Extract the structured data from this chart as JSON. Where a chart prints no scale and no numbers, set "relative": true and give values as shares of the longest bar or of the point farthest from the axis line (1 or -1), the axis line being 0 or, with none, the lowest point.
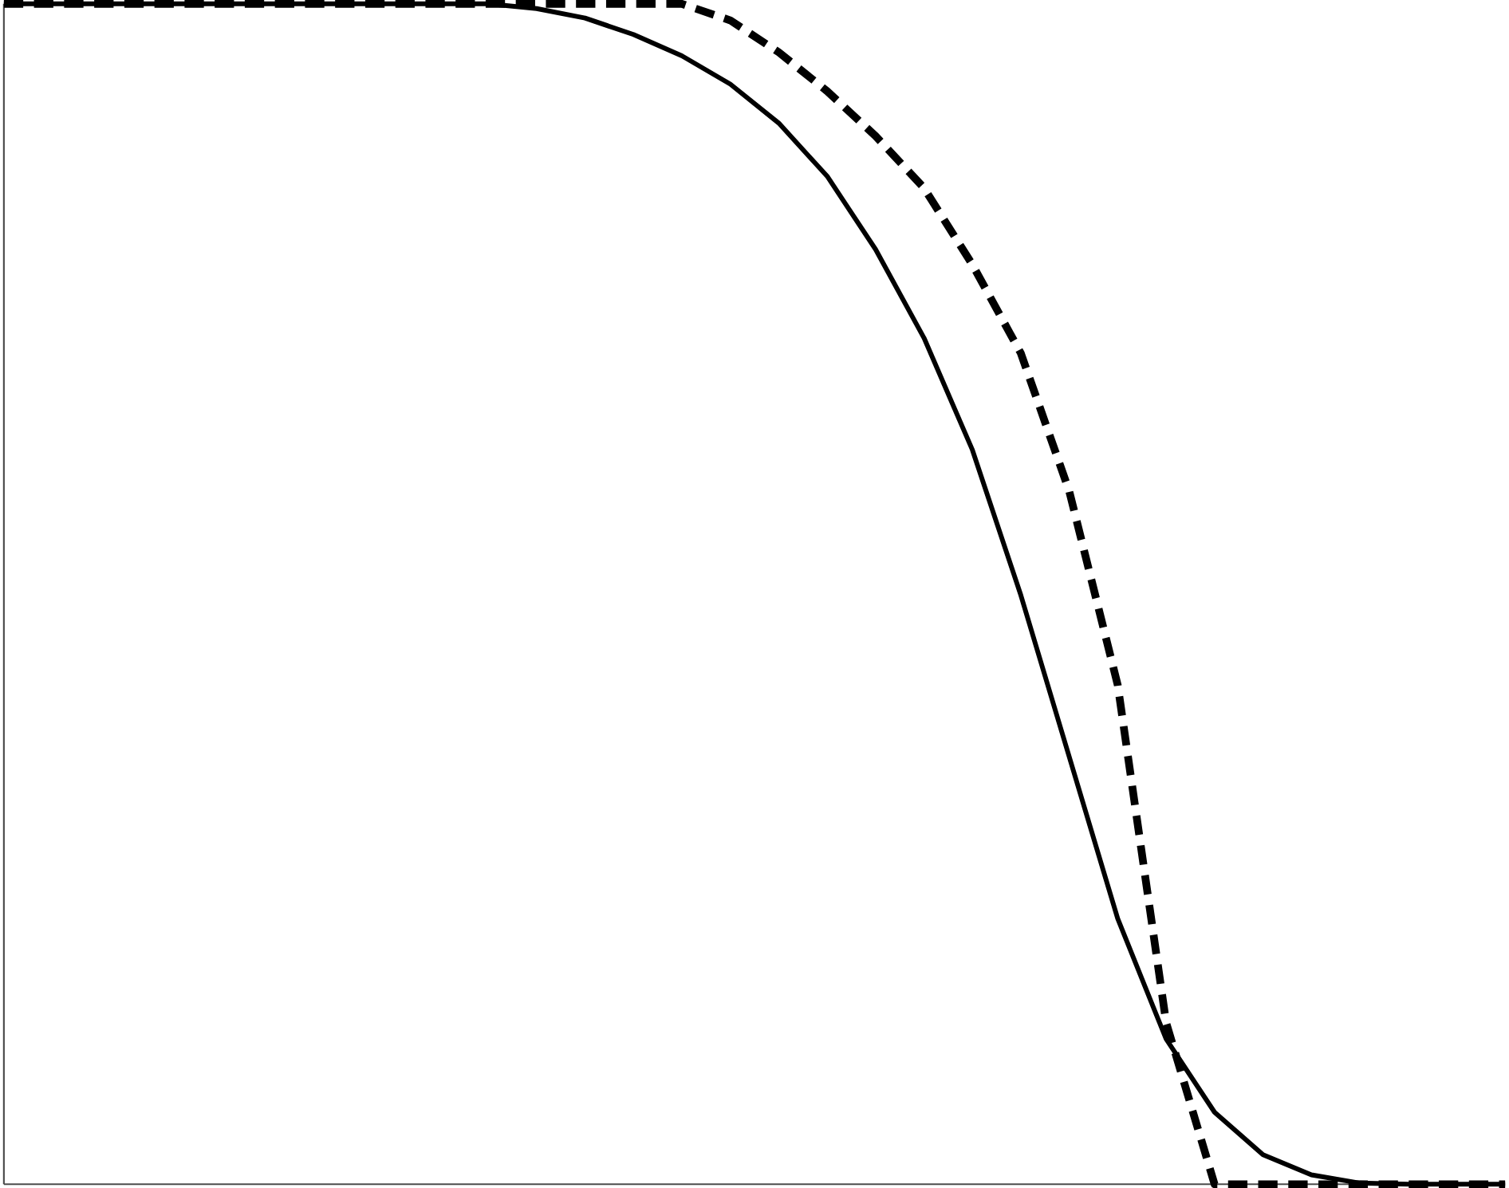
{
  "chart_data": {
    "type": "line",
    "relative": true,
    "categories": [
      null,
      null,
      null,
      null,
      null,
      null,
      null,
      null,
      null,
      null,
      null,
      null,
      null,
      null,
      null,
      null,
      null,
      null,
      null,
      null,
      null,
      null,
      null,
      null,
      null,
      null,
      null,
      null,
      null,
      null,
      null,
      null
    ],
    "series": [
      {
        "color": "#000000",
        "line_style": "solid",
        "values": [
          1,
          1,
          1,
          1,
          1,
          1,
          1,
          1,
          1,
          1,
          1,
          0.996,
          0.988,
          0.974,
          0.956,
          0.932,
          0.899,
          0.854,
          0.792,
          0.717,
          0.622,
          0.499,
          0.362,
          0.225,
          0.123,
          0.061,
          0.025,
          0.008,
          0.001,
          0,
          0,
          0
        ]
      },
      {
        "color": "#000000",
        "line_style": "dashed",
        "values": [
          1,
          1,
          1,
          1,
          1,
          1,
          1,
          1,
          1,
          1,
          1,
          1,
          1,
          1,
          1,
          0.986,
          0.959,
          0.926,
          0.888,
          0.844,
          0.779,
          0.704,
          0.587,
          0.423,
          0.137,
          0,
          0,
          0,
          0,
          0,
          0,
          0
        ]
      }
    ],
    "marker": "none"
  }
}
